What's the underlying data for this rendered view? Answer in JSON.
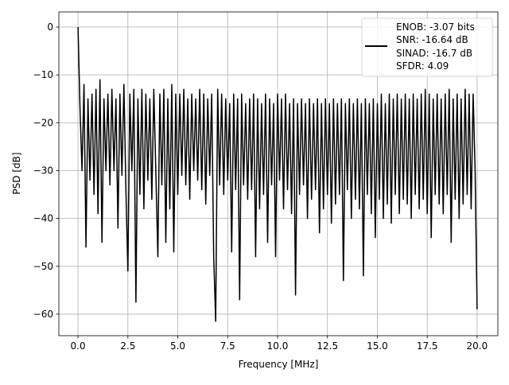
{
  "chart_data": {
    "type": "line",
    "title": "",
    "xlabel": "Frequency [MHz]",
    "ylabel": "PSD [dB]",
    "xlim": [
      -0.96,
      21.04
    ],
    "ylim": [
      -64.5,
      3.16
    ],
    "xticks": [
      0,
      2.5,
      5,
      7.5,
      10,
      12.5,
      15,
      17.5,
      20
    ],
    "xtick_labels": [
      "0.0",
      "2.5",
      "5.0",
      "7.5",
      "10.0",
      "12.5",
      "15.0",
      "17.5",
      "20.0"
    ],
    "yticks": [
      0,
      -10,
      -20,
      -30,
      -40,
      -50,
      -60
    ],
    "ytick_labels": [
      "0",
      "−10",
      "−20",
      "−30",
      "−40",
      "−50",
      "−60"
    ],
    "grid": true,
    "legend_placement": "top-right",
    "series": [
      {
        "name": "ENOB: -3.07 bits\nSNR: -16.64 dB\nSINAD: -16.7 dB\nSFDR: 4.09",
        "color": "#000000",
        "x_start": 0,
        "x_step": 0.1,
        "values": [
          0,
          -17,
          -30,
          -12,
          -46,
          -15,
          -32,
          -14,
          -35,
          -13,
          -39,
          -11,
          -45,
          -15,
          -30,
          -14,
          -33,
          -13,
          -30,
          -15,
          -42,
          -14,
          -31,
          -12,
          -34,
          -51,
          -14,
          -30,
          -13,
          -57.5,
          -15,
          -35,
          -13,
          -38,
          -14,
          -32,
          -15,
          -36,
          -13,
          -30,
          -48,
          -14,
          -33,
          -13,
          -45,
          -15,
          -38,
          -12,
          -47,
          -14,
          -35,
          -14,
          -31,
          -13,
          -33,
          -15,
          -36,
          -14,
          -30,
          -15,
          -32,
          -13,
          -34,
          -14,
          -37,
          -15,
          -31,
          -14,
          -48,
          -61.5,
          -13,
          -33,
          -14,
          -35,
          -15,
          -32,
          -16,
          -47,
          -14,
          -34,
          -15,
          -57,
          -14,
          -33,
          -16,
          -36,
          -15,
          -34,
          -14,
          -48,
          -15,
          -38,
          -16,
          -35,
          -14,
          -45,
          -15,
          -33,
          -16,
          -48,
          -14,
          -32,
          -15,
          -38,
          -14,
          -34,
          -16,
          -39,
          -15,
          -56,
          -16,
          -35,
          -15,
          -33,
          -16,
          -40,
          -15,
          -36,
          -16,
          -34,
          -15,
          -43,
          -16,
          -38,
          -15,
          -35,
          -16,
          -41,
          -15,
          -37,
          -16,
          -35,
          -15,
          -53,
          -16,
          -34,
          -15,
          -40,
          -16,
          -36,
          -15,
          -38,
          -16,
          -52,
          -15,
          -35,
          -16,
          -39,
          -15,
          -44,
          -16,
          -36,
          -14,
          -40,
          -16,
          -37,
          -14,
          -41,
          -15,
          -35,
          -14,
          -39,
          -15,
          -36,
          -14,
          -37,
          -15,
          -40,
          -14,
          -35,
          -15,
          -38,
          -14,
          -36,
          -13,
          -39,
          -14,
          -44,
          -15,
          -35,
          -14,
          -37,
          -15,
          -39,
          -14,
          -35,
          -13,
          -45,
          -15,
          -36,
          -14,
          -40,
          -15,
          -37,
          -13,
          -35,
          -14,
          -38,
          -14,
          -30,
          -59
        ]
      }
    ],
    "legend": [
      "ENOB: -3.07 bits",
      "SNR: -16.64 dB",
      "SINAD: -16.7 dB",
      "SFDR: 4.09"
    ]
  }
}
